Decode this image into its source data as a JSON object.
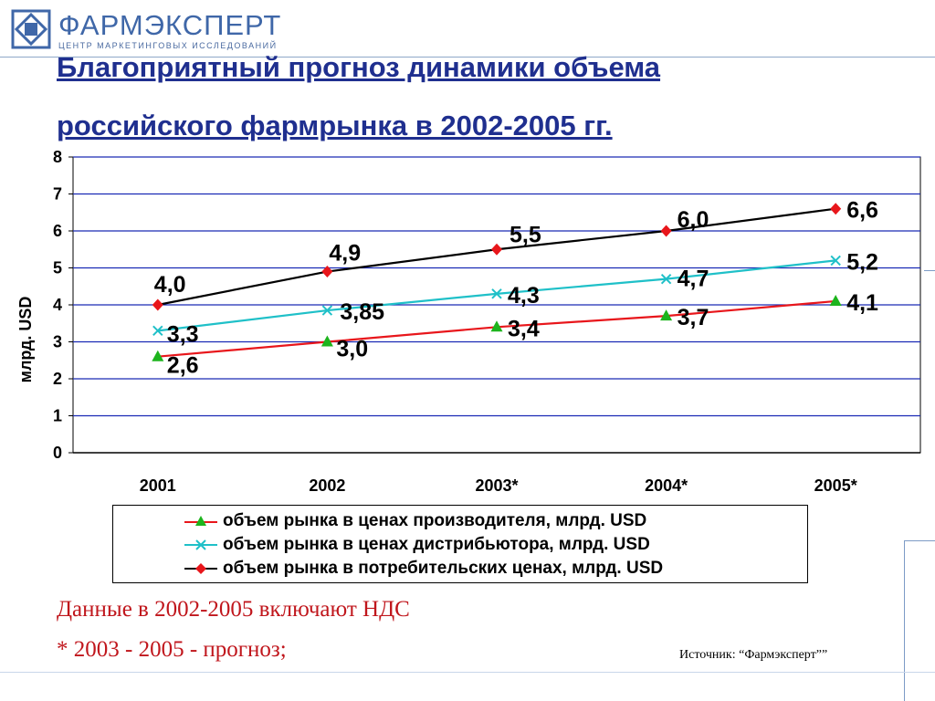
{
  "brand": {
    "name": "ФАРМЭКСПЕРТ",
    "subtitle": "ЦЕНТР МАРКЕТИНГОВЫХ ИССЛЕДОВАНИЙ",
    "color": "#3f67a8"
  },
  "title": {
    "line1": "Благоприятный прогноз динамики объема",
    "line2": "российского фармрынка в 2002-2005 гг."
  },
  "chart_data": {
    "type": "line",
    "title": "Благоприятный прогноз динамики объема российского фармрынка в 2002-2005 гг.",
    "xlabel": "",
    "ylabel": "млрд. USD",
    "categories": [
      "2001",
      "2002",
      "2003*",
      "2004*",
      "2005*"
    ],
    "ylim": [
      0,
      8
    ],
    "yticks": [
      "0",
      "1",
      "2",
      "3",
      "4",
      "5",
      "6",
      "7",
      "8"
    ],
    "grid": true,
    "legend_position": "bottom",
    "series": [
      {
        "name": "объем рынка в ценах производителя, млрд. USD",
        "values": [
          2.6,
          3.0,
          3.4,
          3.7,
          4.1
        ],
        "labels": [
          "2,6",
          "3,0",
          "3,4",
          "3,7",
          "4,1"
        ],
        "line_color": "#e8161b",
        "marker_color": "#1db41d",
        "marker": "triangle"
      },
      {
        "name": "объем рынка в ценах дистрибьютора, млрд. USD",
        "values": [
          3.3,
          3.85,
          4.3,
          4.7,
          5.2
        ],
        "labels": [
          "3,3",
          "3,85",
          "4,3",
          "4,7",
          "5,2"
        ],
        "line_color": "#1fc0c8",
        "marker_color": "#1fc0c8",
        "marker": "x"
      },
      {
        "name": "объем рынка в потребительских ценах, млрд. USD",
        "values": [
          4.0,
          4.9,
          5.5,
          6.0,
          6.6
        ],
        "labels": [
          "4,0",
          "4,9",
          "5,5",
          "6,0",
          "6,6"
        ],
        "line_color": "#000000",
        "marker_color": "#e8161b",
        "marker": "diamond"
      }
    ]
  },
  "notes": {
    "line1": "Данные в 2002-2005 включают НДС",
    "line2": "* 2003 - 2005 - прогноз;"
  },
  "source": "Источник: “Фармэксперт””",
  "colors": {
    "title": "#1f2f8f",
    "gridline": "#1a2bb5",
    "notes": "#c0161c"
  }
}
